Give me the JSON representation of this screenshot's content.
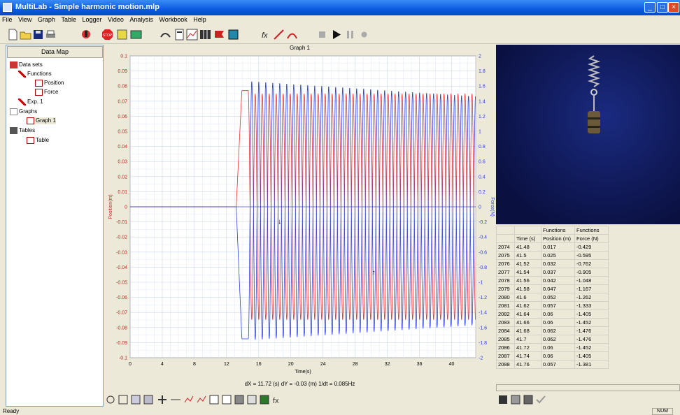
{
  "window": {
    "title": "MultiLab - Simple harmonic motion.mlp"
  },
  "menu": [
    "File",
    "View",
    "Graph",
    "Table",
    "Logger",
    "Video",
    "Analysis",
    "Workbook",
    "Help"
  ],
  "datamap": {
    "header": "Data Map",
    "tree": [
      {
        "label": "Data sets",
        "level": 0
      },
      {
        "label": "Functions",
        "level": 1
      },
      {
        "label": "Position",
        "level": 2
      },
      {
        "label": "Force",
        "level": 2
      },
      {
        "label": "Exp. 1",
        "level": 1
      },
      {
        "label": "Graphs",
        "level": 0
      },
      {
        "label": "Graph 1",
        "level": 1
      },
      {
        "label": "Tables",
        "level": 0
      },
      {
        "label": "Table",
        "level": 1
      }
    ]
  },
  "graph": {
    "title": "Graph 1",
    "status_line": "dX = 11.72 (s) dY = -0.03 (m) 1/dt = 0.085Hz"
  },
  "chart_data": {
    "type": "line",
    "xlabel": "Time(s)",
    "ylabel_left": "Position(m)",
    "ylabel_right": "Force(N)",
    "xlim": [
      0,
      43
    ],
    "ylim_left": [
      -0.1,
      0.1
    ],
    "ylim_right": [
      -2,
      2
    ],
    "x_ticks": [
      "0",
      "4",
      "8",
      "12",
      "16",
      "20",
      "24",
      "28",
      "32",
      "36",
      "40"
    ],
    "y_ticks_left": [
      "0.1",
      "0.09",
      "0.08",
      "0.07",
      "0.06",
      "0.05",
      "0.04",
      "0.03",
      "0.02",
      "0.01",
      "0",
      "-0.01",
      "-0.02",
      "-0.03",
      "-0.04",
      "-0.05",
      "-0.06",
      "-0.07",
      "-0.08",
      "-0.09",
      "-0.1"
    ],
    "y_ticks_right": [
      "2",
      "1.8",
      "1.6",
      "1.4",
      "1.2",
      "1",
      "0.8",
      "0.6",
      "0.4",
      "0.2",
      "0",
      "-0.2",
      "-0.4",
      "-0.6",
      "-0.8",
      "-1",
      "-1.2",
      "-1.4",
      "-1.6",
      "-1.8",
      "-2"
    ],
    "grid": true,
    "series": [
      {
        "name": "Position",
        "color": "#e83030",
        "axis": "left",
        "baseline": 0,
        "onset_x": 13.2,
        "step_peak": 0.077,
        "period": 0.87,
        "amplitude": 0.075,
        "offset": 0.0
      },
      {
        "name": "Force",
        "color": "#2a3fe0",
        "axis": "right",
        "baseline": 0,
        "onset_x": 13.2,
        "step_trough": -1.75,
        "period": 0.87,
        "amplitude_start": 1.72,
        "amplitude_end": 1.52,
        "offset": -0.05
      }
    ]
  },
  "table": {
    "headers_top": [
      "",
      "",
      "Functions",
      "Functions"
    ],
    "headers": [
      "",
      "Time (s)",
      "Position (m)",
      "Force (N)"
    ],
    "rows": [
      [
        "2074",
        "41.48",
        "0.017",
        "-0.429"
      ],
      [
        "2075",
        "41.5",
        "0.025",
        "-0.595"
      ],
      [
        "2076",
        "41.52",
        "0.032",
        "-0.762"
      ],
      [
        "2077",
        "41.54",
        "0.037",
        "-0.905"
      ],
      [
        "2078",
        "41.56",
        "0.042",
        "-1.048"
      ],
      [
        "2079",
        "41.58",
        "0.047",
        "-1.167"
      ],
      [
        "2080",
        "41.6",
        "0.052",
        "-1.262"
      ],
      [
        "2081",
        "41.62",
        "0.057",
        "-1.333"
      ],
      [
        "2082",
        "41.64",
        "0.06",
        "-1.405"
      ],
      [
        "2083",
        "41.66",
        "0.06",
        "-1.452"
      ],
      [
        "2084",
        "41.68",
        "0.062",
        "-1.476"
      ],
      [
        "2085",
        "41.7",
        "0.062",
        "-1.476"
      ],
      [
        "2086",
        "41.72",
        "0.06",
        "-1.452"
      ],
      [
        "2087",
        "41.74",
        "0.06",
        "-1.405"
      ],
      [
        "2088",
        "41.76",
        "0.057",
        "-1.381"
      ]
    ]
  },
  "statusbar": {
    "left": "Ready",
    "right": "NUM"
  }
}
